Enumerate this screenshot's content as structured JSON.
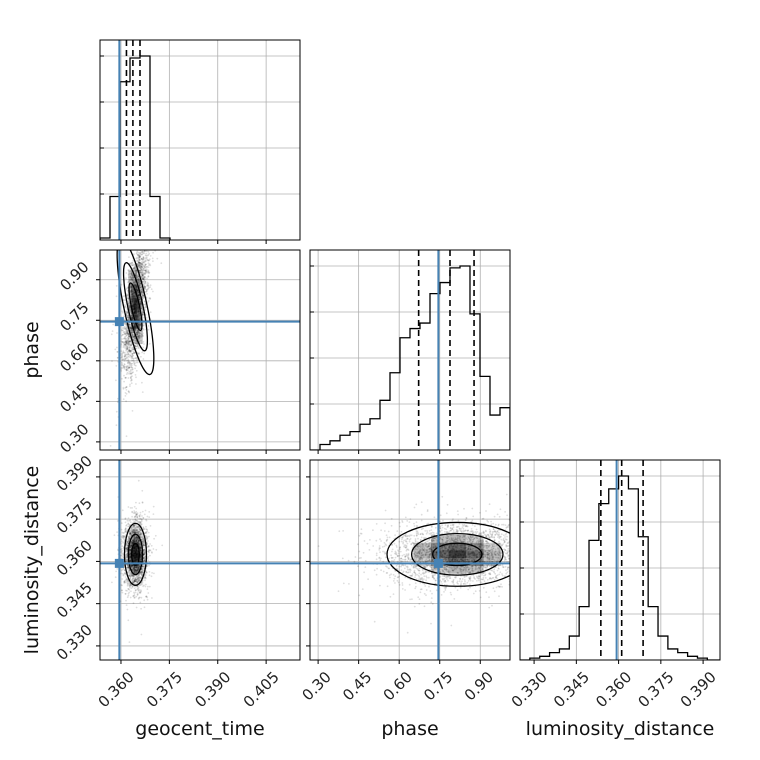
{
  "chart_data": {
    "type": "corner",
    "parameters": [
      "geocent_time",
      "phase",
      "luminosity_distance"
    ],
    "truths": {
      "geocent_time": 0.3595,
      "phase": 0.745,
      "luminosity_distance": 0.3593
    },
    "axis_ranges": {
      "geocent_time": [
        0.3535,
        0.4155
      ],
      "phase": [
        0.27,
        1.01
      ],
      "luminosity_distance": [
        0.325,
        0.396
      ]
    },
    "ticks": {
      "geocent_time": [
        {
          "v": 0.36,
          "label": "0.360"
        },
        {
          "v": 0.375,
          "label": "0.375"
        },
        {
          "v": 0.39,
          "label": "0.390"
        },
        {
          "v": 0.405,
          "label": "0.405"
        }
      ],
      "phase": [
        {
          "v": 0.3,
          "label": "0.30"
        },
        {
          "v": 0.45,
          "label": "0.45"
        },
        {
          "v": 0.6,
          "label": "0.60"
        },
        {
          "v": 0.75,
          "label": "0.75"
        },
        {
          "v": 0.9,
          "label": "0.90"
        }
      ],
      "luminosity_distance": [
        {
          "v": 0.33,
          "label": "0.330"
        },
        {
          "v": 0.345,
          "label": "0.345"
        },
        {
          "v": 0.36,
          "label": "0.360"
        },
        {
          "v": 0.375,
          "label": "0.375"
        },
        {
          "v": 0.39,
          "label": "0.390"
        }
      ]
    },
    "marginals": {
      "geocent_time": {
        "edges": [
          0.3535,
          0.3566,
          0.3597,
          0.3628,
          0.3659,
          0.369,
          0.3721,
          0.3752
        ],
        "counts": [
          0.01,
          0.22,
          0.8,
          0.92,
          0.93,
          0.22,
          0.01
        ],
        "quantiles": [
          0.3617,
          0.3637,
          0.3659
        ]
      },
      "phase": {
        "edges": [
          0.27,
          0.307,
          0.344,
          0.381,
          0.418,
          0.455,
          0.492,
          0.529,
          0.566,
          0.603,
          0.64,
          0.677,
          0.714,
          0.751,
          0.788,
          0.825,
          0.862,
          0.899,
          0.936,
          0.973,
          1.01
        ],
        "counts": [
          0.0,
          0.03,
          0.05,
          0.08,
          0.1,
          0.14,
          0.17,
          0.27,
          0.42,
          0.61,
          0.66,
          0.69,
          0.85,
          0.91,
          0.99,
          1.0,
          0.74,
          0.4,
          0.19,
          0.23
        ],
        "quantiles": [
          0.672,
          0.788,
          0.877
        ]
      },
      "luminosity_distance": {
        "edges": [
          0.325,
          0.3285,
          0.332,
          0.3355,
          0.339,
          0.3425,
          0.346,
          0.3495,
          0.353,
          0.3565,
          0.36,
          0.3635,
          0.367,
          0.3705,
          0.374,
          0.3775,
          0.381,
          0.3845,
          0.388,
          0.3915,
          0.396
        ],
        "counts": [
          0.0,
          0.01,
          0.02,
          0.04,
          0.06,
          0.13,
          0.29,
          0.65,
          0.85,
          0.93,
          1.0,
          0.93,
          0.67,
          0.29,
          0.13,
          0.06,
          0.04,
          0.02,
          0.01,
          0.0
        ],
        "quantiles": [
          0.3537,
          0.3611,
          0.3687
        ]
      }
    },
    "joint": [
      {
        "x": "geocent_time",
        "y": "phase",
        "center": [
          0.3645,
          0.8
        ],
        "sd": [
          0.0018,
          0.11
        ],
        "rho": 0.55
      },
      {
        "x": "geocent_time",
        "y": "luminosity_distance",
        "center": [
          0.3645,
          0.3625
        ],
        "sd": [
          0.0017,
          0.0055
        ],
        "rho": 0.0
      },
      {
        "x": "phase",
        "y": "luminosity_distance",
        "center": [
          0.815,
          0.3625
        ],
        "sd": [
          0.13,
          0.0055
        ],
        "rho": 0.1
      }
    ],
    "colors": {
      "truth": "#4682b4",
      "hist": "#000000",
      "grid": "#b0b0b0"
    },
    "grid": true
  }
}
